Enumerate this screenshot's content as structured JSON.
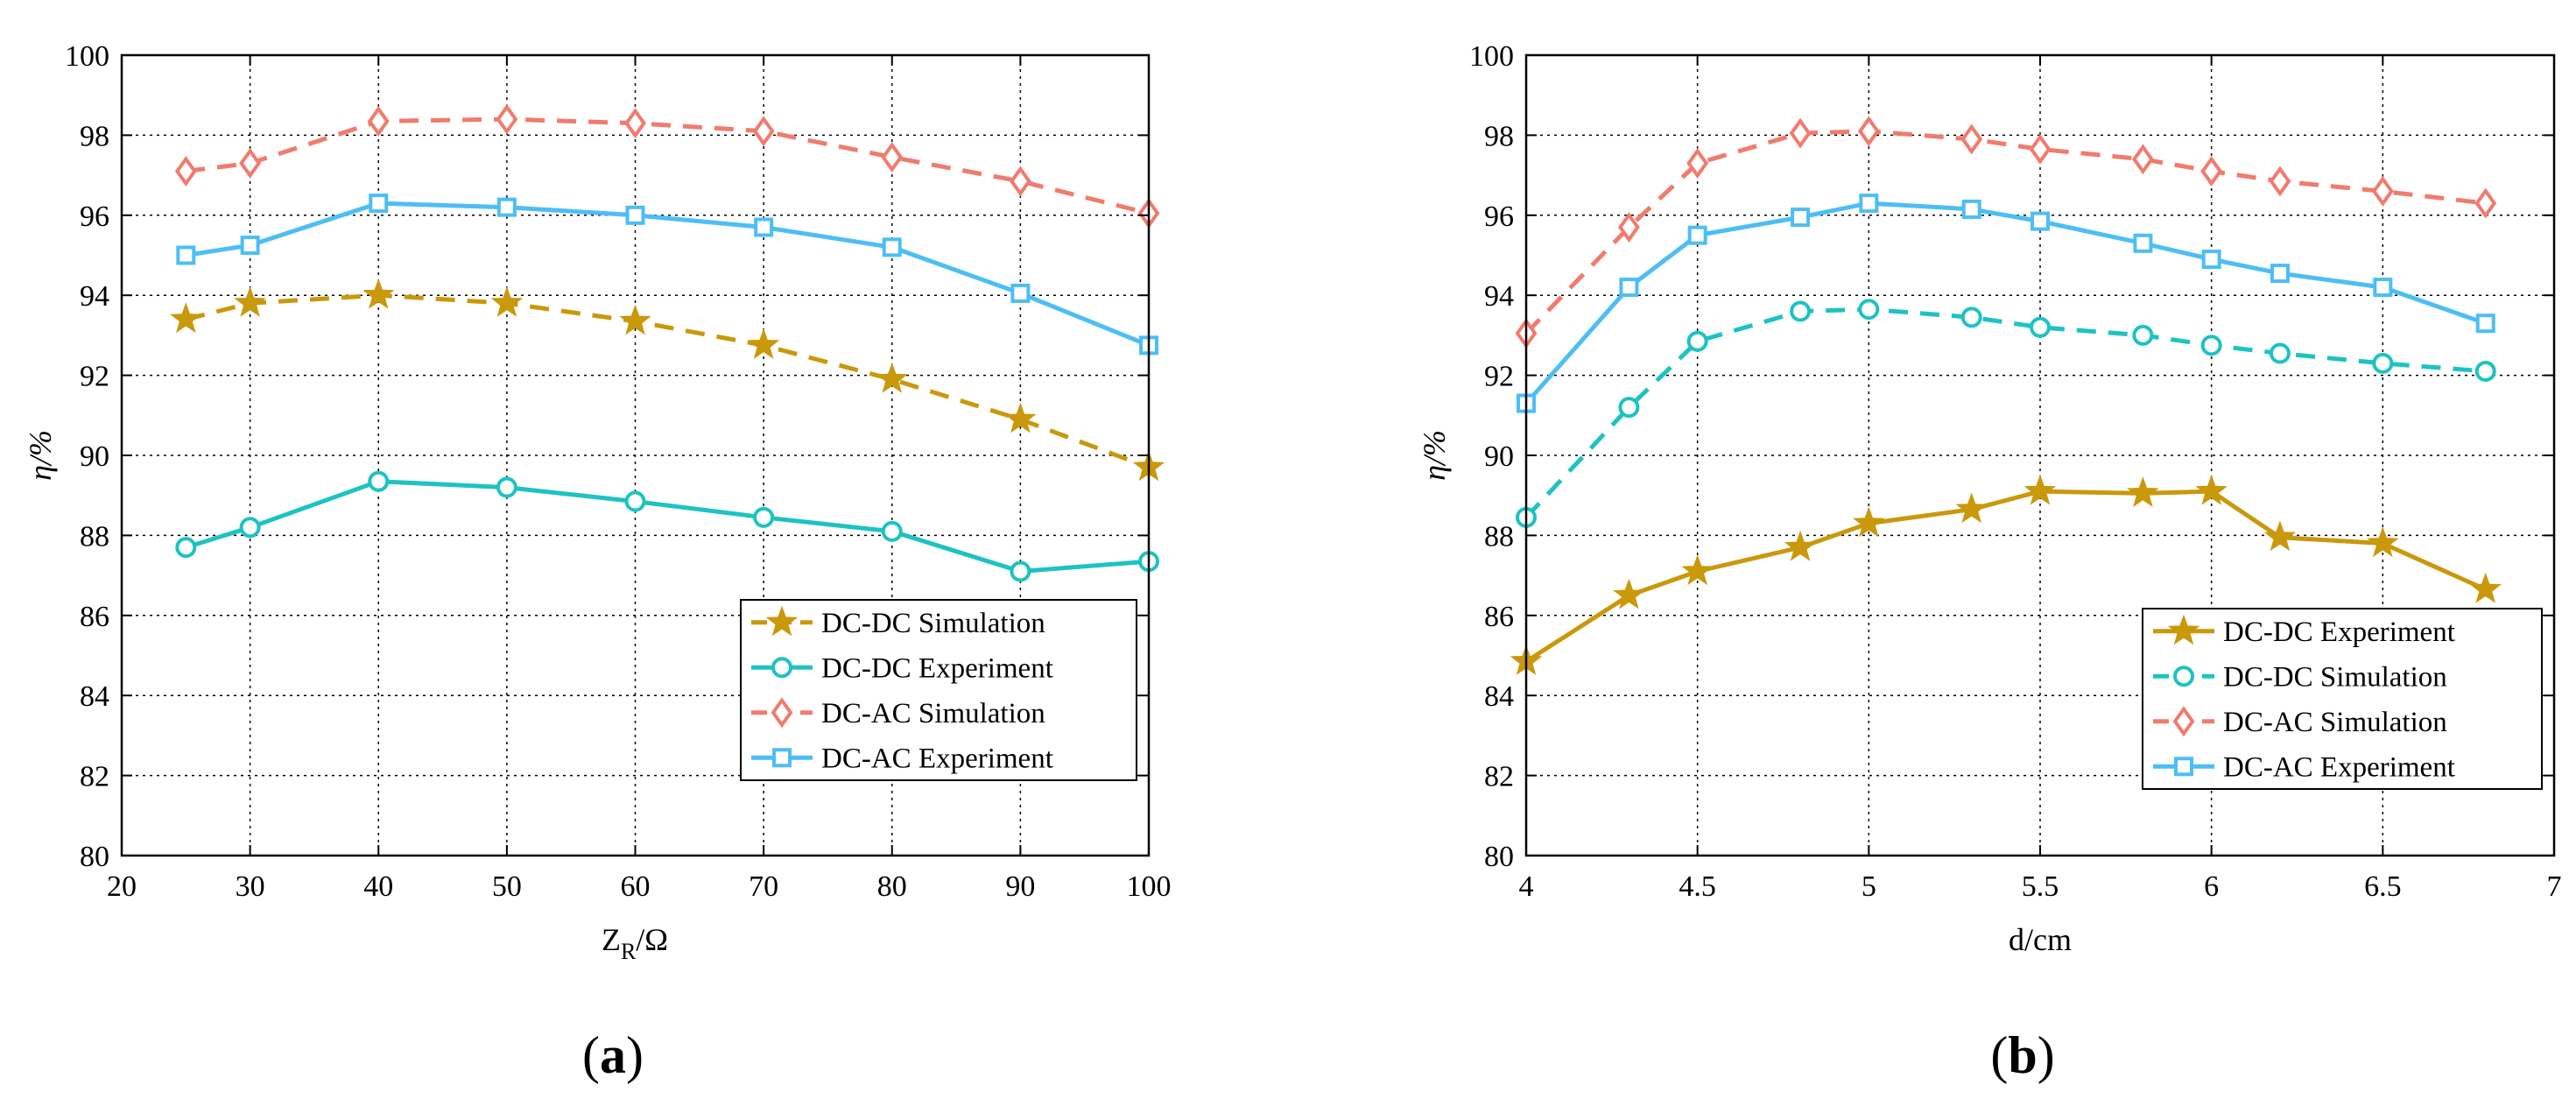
{
  "chart_data": [
    {
      "type": "line",
      "panel_label": {
        "open": "(",
        "letter": "a",
        "close": ")"
      },
      "ylabel": "η/%",
      "xlabel": {
        "main": "Z",
        "sub": "R",
        "tail": "/Ω"
      },
      "xlim": [
        20,
        100
      ],
      "ylim": [
        80,
        100
      ],
      "xticks": [
        "20",
        "30",
        "40",
        "50",
        "60",
        "70",
        "80",
        "90",
        "100"
      ],
      "yticks": [
        "80",
        "82",
        "84",
        "86",
        "88",
        "90",
        "92",
        "94",
        "96",
        "98",
        "100"
      ],
      "legend_position": "bottom-right",
      "series": [
        {
          "name": "DC-DC Simulation",
          "color": "#C9980B",
          "dash": true,
          "marker": "star",
          "x": [
            25,
            30,
            40,
            50,
            60,
            70,
            80,
            90,
            100
          ],
          "y": [
            93.4,
            93.8,
            94.0,
            93.8,
            93.35,
            92.75,
            91.9,
            90.9,
            89.7
          ]
        },
        {
          "name": "DC-DC Experiment",
          "color": "#1EC2C2",
          "dash": false,
          "marker": "circle",
          "x": [
            25,
            30,
            40,
            50,
            60,
            70,
            80,
            90,
            100
          ],
          "y": [
            87.7,
            88.2,
            89.35,
            89.2,
            88.85,
            88.45,
            88.1,
            87.1,
            87.35
          ]
        },
        {
          "name": "DC-AC Simulation",
          "color": "#F07B6E",
          "dash": true,
          "marker": "diamond",
          "x": [
            25,
            30,
            40,
            50,
            60,
            70,
            80,
            90,
            100
          ],
          "y": [
            97.1,
            97.3,
            98.35,
            98.4,
            98.3,
            98.1,
            97.45,
            96.85,
            96.05
          ]
        },
        {
          "name": "DC-AC Experiment",
          "color": "#4DBEF5",
          "dash": false,
          "marker": "square",
          "x": [
            25,
            30,
            40,
            50,
            60,
            70,
            80,
            90,
            100
          ],
          "y": [
            95.0,
            95.25,
            96.3,
            96.2,
            96.0,
            95.7,
            95.2,
            94.05,
            92.75
          ]
        }
      ]
    },
    {
      "type": "line",
      "panel_label": {
        "open": "(",
        "letter": "b",
        "close": ")"
      },
      "ylabel": "η/%",
      "xlabel": {
        "main": "d/cm",
        "sub": "",
        "tail": ""
      },
      "xlim": [
        4,
        7
      ],
      "ylim": [
        80,
        100
      ],
      "xticks": [
        "4",
        "4.5",
        "5",
        "5.5",
        "6",
        "6.5",
        "7"
      ],
      "yticks": [
        "80",
        "82",
        "84",
        "86",
        "88",
        "90",
        "92",
        "94",
        "96",
        "98",
        "100"
      ],
      "legend_position": "bottom-right",
      "series": [
        {
          "name": "DC-DC Experiment",
          "color": "#C9980B",
          "dash": false,
          "marker": "star",
          "x": [
            4,
            4.3,
            4.5,
            4.8,
            5,
            5.3,
            5.5,
            5.8,
            6,
            6.2,
            6.5,
            6.8
          ],
          "y": [
            84.85,
            86.5,
            87.1,
            87.7,
            88.3,
            88.65,
            89.1,
            89.05,
            89.1,
            87.95,
            87.8,
            86.65
          ]
        },
        {
          "name": "DC-DC Simulation",
          "color": "#1EC2C2",
          "dash": true,
          "marker": "circle",
          "x": [
            4,
            4.3,
            4.5,
            4.8,
            5,
            5.3,
            5.5,
            5.8,
            6,
            6.2,
            6.5,
            6.8
          ],
          "y": [
            88.45,
            91.2,
            92.85,
            93.6,
            93.65,
            93.45,
            93.2,
            93.0,
            92.75,
            92.55,
            92.3,
            92.1
          ]
        },
        {
          "name": "DC-AC Simulation",
          "color": "#F07B6E",
          "dash": true,
          "marker": "diamond",
          "x": [
            4,
            4.3,
            4.5,
            4.8,
            5,
            5.3,
            5.5,
            5.8,
            6,
            6.2,
            6.5,
            6.8
          ],
          "y": [
            93.05,
            95.7,
            97.3,
            98.05,
            98.1,
            97.9,
            97.65,
            97.4,
            97.1,
            96.85,
            96.6,
            96.3
          ]
        },
        {
          "name": "DC-AC Experiment",
          "color": "#4DBEF5",
          "dash": false,
          "marker": "square",
          "x": [
            4,
            4.3,
            4.5,
            4.8,
            5,
            5.3,
            5.5,
            5.8,
            6,
            6.2,
            6.5,
            6.8
          ],
          "y": [
            91.3,
            94.2,
            95.5,
            95.95,
            96.3,
            96.15,
            95.85,
            95.3,
            94.9,
            94.55,
            94.2,
            93.3
          ]
        }
      ]
    }
  ]
}
